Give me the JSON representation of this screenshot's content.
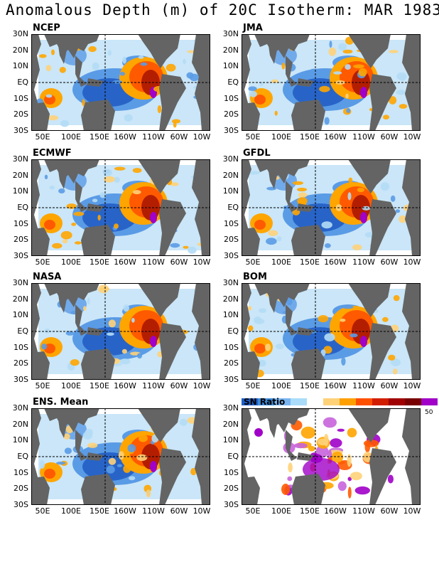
{
  "title": "Anomalous Depth (m) of 20C Isotherm: MAR 1983",
  "lat_labels": [
    "30N",
    "20N",
    "10N",
    "EQ",
    "10S",
    "20S",
    "30S"
  ],
  "lon_labels": [
    "50E",
    "100E",
    "150E",
    "160W",
    "110W",
    "60W",
    "10W"
  ],
  "panels": [
    {
      "label": "NCEP"
    },
    {
      "label": "JMA"
    },
    {
      "label": "ECMWF"
    },
    {
      "label": "GFDL"
    },
    {
      "label": "NASA"
    },
    {
      "label": "BOM"
    },
    {
      "label": "ENS. Mean"
    },
    {
      "label": ""
    }
  ],
  "legend": {
    "title": "SN Ratio",
    "max_label": "50",
    "colors": [
      "#1e5fc8",
      "#3c8cdc",
      "#78b4f0",
      "#aadcfa",
      "#ffffff",
      "#ffd278",
      "#ffa000",
      "#ff5000",
      "#d21e00",
      "#a00000",
      "#780000",
      "#a000c8"
    ]
  },
  "colors": {
    "land": "#646464",
    "deep_blue": "#2864c8",
    "mid_blue": "#5a9be6",
    "light_blue": "#b4dcf5",
    "orange": "#ffa500",
    "red_orange": "#ff5a00",
    "dark_red": "#b41e00",
    "purple": "#a000c8"
  }
}
